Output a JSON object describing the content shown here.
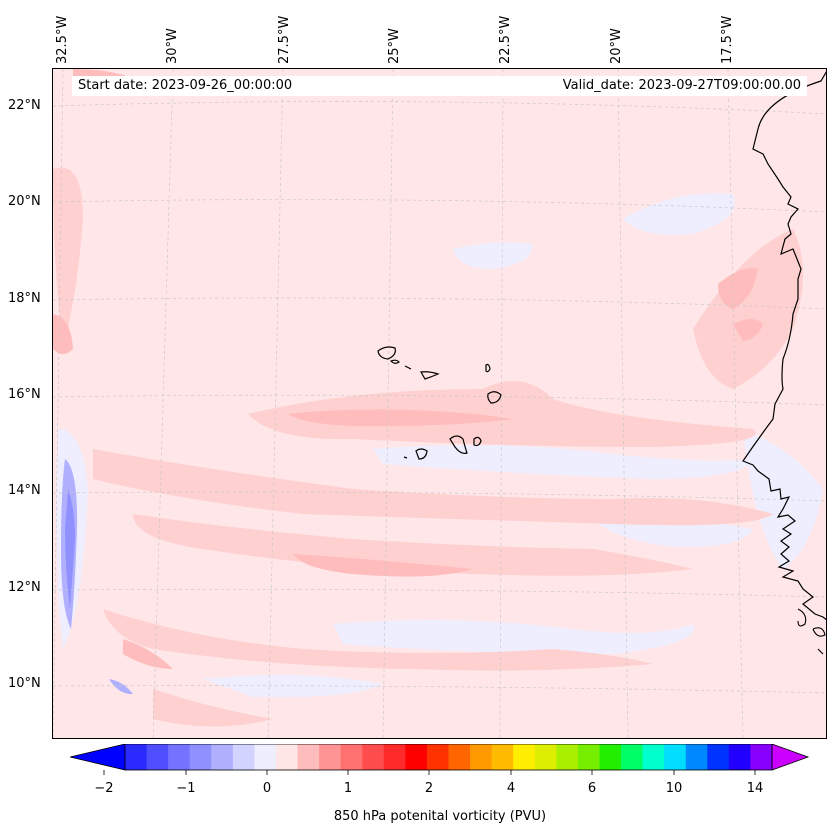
{
  "map": {
    "start_date": "Start date: 2023-09-26_00:00:00",
    "valid_date": "Valid_date: 2023-09-27T09:00:00.00",
    "lon_labels": [
      "32.5°W",
      "30°W",
      "27.5°W",
      "25°W",
      "22.5°W",
      "20°W",
      "17.5°W"
    ],
    "lat_labels": [
      "22°N",
      "20°N",
      "18°N",
      "16°N",
      "14°N",
      "12°N",
      "10°N"
    ],
    "features": [
      "Cape Verde Islands",
      "West African coastline"
    ]
  },
  "colorbar": {
    "title": "850 hPa potenital vorticity (PVU)",
    "ticks": [
      "−2",
      "−1",
      "0",
      "1",
      "2",
      "4",
      "6",
      "10",
      "14"
    ],
    "colors": [
      "#0000ff",
      "#2a2aff",
      "#4f4fff",
      "#7373ff",
      "#9090ff",
      "#b0b0ff",
      "#d3d3ff",
      "#eeeeff",
      "#ffe6e6",
      "#ffbcbc",
      "#ff9494",
      "#ff7070",
      "#ff4d4d",
      "#ff2a2a",
      "#ff0000",
      "#ff3300",
      "#ff6600",
      "#ff9900",
      "#ffbb00",
      "#ffee00",
      "#ddee00",
      "#aaee00",
      "#77ee00",
      "#22ee00",
      "#00ff66",
      "#00ffcc",
      "#00ddff",
      "#0088ff",
      "#0033ff",
      "#2200ff",
      "#8800ff",
      "#cc00ff"
    ]
  }
}
